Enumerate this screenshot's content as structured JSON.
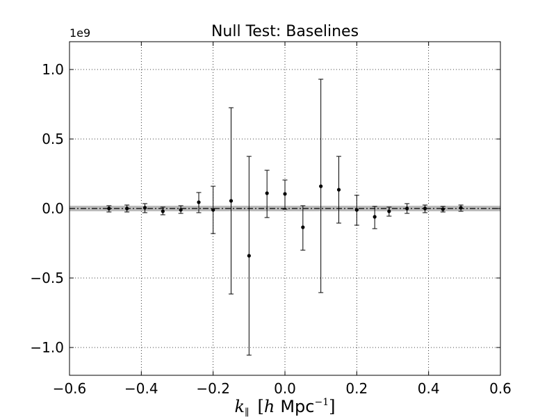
{
  "chart_data": {
    "type": "scatter",
    "title": "Null Test: Baselines",
    "xlabel": "k∥ [h Mpc⁻¹]",
    "xlabel_parts": {
      "symbol": "k",
      "subscript": "∥",
      "bracket_open": "[",
      "h": "h",
      "unit": "Mpc",
      "exponent": "−1",
      "bracket_close": "]"
    },
    "ylabel": "",
    "y_offset_text": "1e9",
    "y_scale_factor": 1000000000,
    "xlim": [
      -0.6,
      0.6
    ],
    "ylim": [
      -1.2,
      1.2
    ],
    "x_ticks": [
      -0.6,
      -0.4,
      -0.2,
      0.0,
      0.2,
      0.4,
      0.6
    ],
    "x_tick_labels": [
      "−0.6",
      "−0.4",
      "−0.2",
      "0.0",
      "0.2",
      "0.4",
      "0.6"
    ],
    "y_ticks": [
      -1.0,
      -0.5,
      0.0,
      0.5,
      1.0
    ],
    "y_tick_labels": [
      "−1.0",
      "−0.5",
      "0.0",
      "0.5",
      "1.0"
    ],
    "grid": true,
    "grid_style": "dotted",
    "legend": "none",
    "reference_line": {
      "y": 0.0,
      "style": "dash-dot",
      "color": "#000000"
    },
    "shaded_band": {
      "y_min": -0.02,
      "y_max": 0.02,
      "color": "#bbbbbb"
    },
    "marker_color": "#000000",
    "series": [
      {
        "x": [
          -0.49,
          -0.44,
          -0.39,
          -0.34,
          -0.29,
          -0.24,
          -0.2,
          -0.15,
          -0.1,
          -0.05,
          0.0,
          0.05,
          0.1,
          0.15,
          0.2,
          0.25,
          0.29,
          0.34,
          0.39,
          0.44,
          0.49
        ],
        "y": [
          0.0,
          0.0,
          0.005,
          -0.02,
          -0.01,
          0.045,
          -0.01,
          0.055,
          -0.34,
          0.11,
          0.105,
          -0.135,
          0.16,
          0.135,
          -0.01,
          -0.06,
          -0.02,
          0.0,
          0.0,
          -0.005,
          0.005
        ],
        "y_err_low": [
          -0.025,
          -0.025,
          -0.03,
          -0.045,
          -0.035,
          -0.03,
          -0.18,
          -0.615,
          -1.055,
          -0.065,
          -0.005,
          -0.3,
          -0.605,
          -0.105,
          -0.12,
          -0.145,
          -0.055,
          -0.035,
          -0.03,
          -0.025,
          -0.02
        ],
        "y_err_high": [
          0.02,
          0.025,
          0.035,
          0.01,
          0.02,
          0.115,
          0.16,
          0.725,
          0.375,
          0.275,
          0.205,
          0.02,
          0.93,
          0.375,
          0.095,
          0.015,
          0.01,
          0.035,
          0.025,
          0.015,
          0.025
        ]
      }
    ]
  }
}
